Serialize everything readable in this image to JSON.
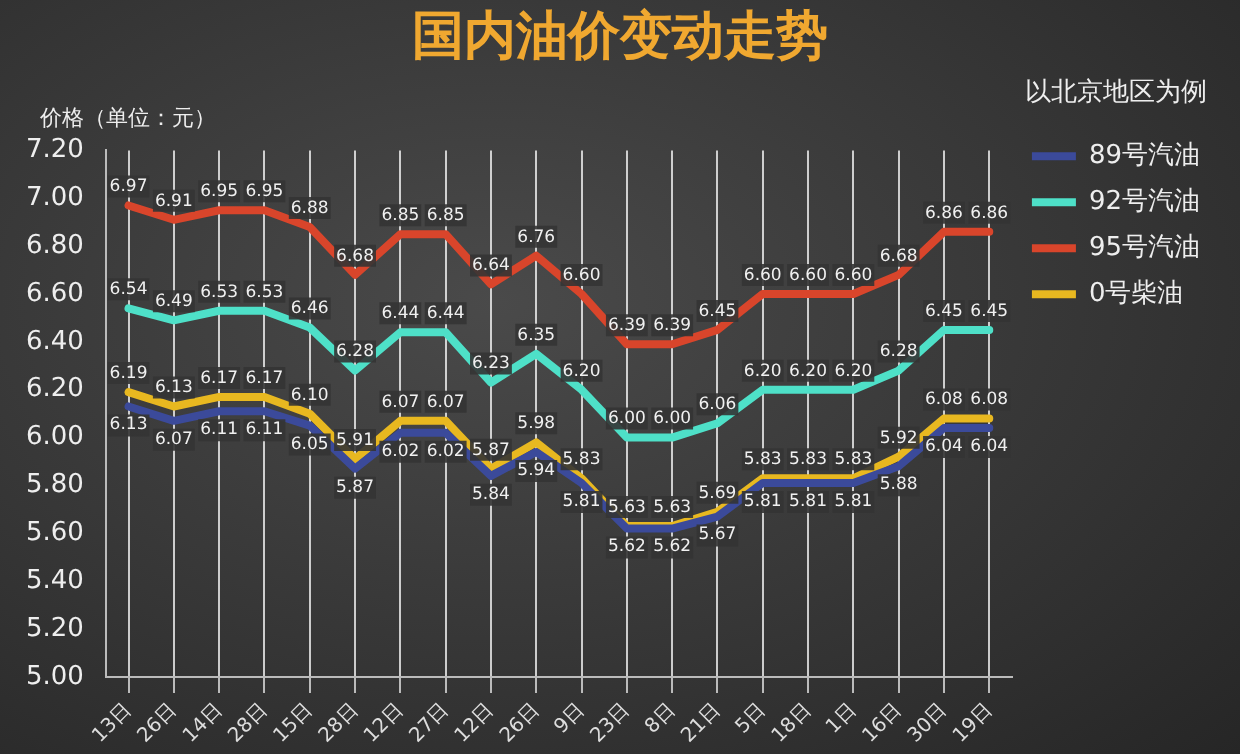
{
  "chart_data": {
    "type": "line",
    "title": "国内油价变动走势",
    "ylabel": "价格（单位：元）",
    "legend_title": "以北京地区为例",
    "legend": "right",
    "grid": "x",
    "line_style": "solid",
    "marker": "none",
    "categories": [
      "13日",
      "26日",
      "14日",
      "28日",
      "15日",
      "28日",
      "12日",
      "27日",
      "12日",
      "26日",
      "9日",
      "23日",
      "8日",
      "21日",
      "5日",
      "18日",
      "1日",
      "16日",
      "30日",
      "19日"
    ],
    "ylim": [
      5,
      7.2
    ],
    "yticks": [
      {
        "value": 5,
        "label": "5.00"
      },
      {
        "value": 5.2,
        "label": "5.20"
      },
      {
        "value": 5.4,
        "label": "5.40"
      },
      {
        "value": 5.6,
        "label": "5.60"
      },
      {
        "value": 5.8,
        "label": "5.80"
      },
      {
        "value": 6,
        "label": "6.00"
      },
      {
        "value": 6.2,
        "label": "6.20"
      },
      {
        "value": 6.4,
        "label": "6.40"
      },
      {
        "value": 6.6,
        "label": "6.60"
      },
      {
        "value": 6.8,
        "label": "6.80"
      },
      {
        "value": 7,
        "label": "7.00"
      },
      {
        "value": 7.2,
        "label": "7.20"
      }
    ],
    "series": [
      {
        "name": "89号汽油",
        "color": "#3b4a9a",
        "values": [
          6.13,
          6.07,
          6.11,
          6.11,
          6.05,
          5.87,
          6.02,
          6.02,
          5.84,
          5.94,
          5.81,
          5.62,
          5.62,
          5.67,
          5.81,
          5.81,
          5.81,
          5.88,
          6.04,
          6.04
        ],
        "value_labels": [
          "6.13",
          "6.07",
          "6.11",
          "6.11",
          "6.05",
          "5.87",
          "6.02",
          "6.02",
          "5.84",
          "5.94",
          "5.81",
          "5.62",
          "5.62",
          "5.67",
          "5.81",
          "5.81",
          "5.81",
          "5.88",
          "6.04",
          "6.04"
        ]
      },
      {
        "name": "92号汽油",
        "color": "#4ee0c8",
        "values": [
          6.54,
          6.49,
          6.53,
          6.53,
          6.46,
          6.28,
          6.44,
          6.44,
          6.23,
          6.35,
          6.2,
          6.0,
          6.0,
          6.06,
          6.2,
          6.2,
          6.2,
          6.28,
          6.45,
          6.45
        ],
        "value_labels": [
          "6.54",
          "6.49",
          "6.53",
          "6.53",
          "6.46",
          "6.28",
          "6.44",
          "6.44",
          "6.23",
          "6.35",
          "6.20",
          "6.00",
          "6.00",
          "6.06",
          "6.20",
          "6.20",
          "6.20",
          "6.28",
          "6.45",
          "6.45"
        ]
      },
      {
        "name": "95号汽油",
        "color": "#d9452b",
        "values": [
          6.97,
          6.91,
          6.95,
          6.95,
          6.88,
          6.68,
          6.85,
          6.85,
          6.64,
          6.76,
          6.6,
          6.39,
          6.39,
          6.45,
          6.6,
          6.6,
          6.6,
          6.68,
          6.86,
          6.86
        ],
        "value_labels": [
          "6.97",
          "6.91",
          "6.95",
          "6.95",
          "6.88",
          "6.68",
          "6.85",
          "6.85",
          "6.64",
          "6.76",
          "6.60",
          "6.39",
          "6.39",
          "6.45",
          "6.60",
          "6.60",
          "6.60",
          "6.68",
          "6.86",
          "6.86"
        ]
      },
      {
        "name": "0号柴油",
        "color": "#e8b820",
        "values": [
          6.19,
          6.13,
          6.17,
          6.17,
          6.1,
          5.91,
          6.07,
          6.07,
          5.87,
          5.98,
          5.83,
          5.63,
          5.63,
          5.69,
          5.83,
          5.83,
          5.83,
          5.92,
          6.08,
          6.08
        ],
        "value_labels": [
          "6.19",
          "6.13",
          "6.17",
          "6.17",
          "6.10",
          "5.91",
          "6.07",
          "6.07",
          "5.87",
          "5.98",
          "5.83",
          "5.63",
          "5.63",
          "5.69",
          "5.83",
          "5.83",
          "5.83",
          "5.92",
          "6.08",
          "6.08"
        ]
      }
    ]
  }
}
